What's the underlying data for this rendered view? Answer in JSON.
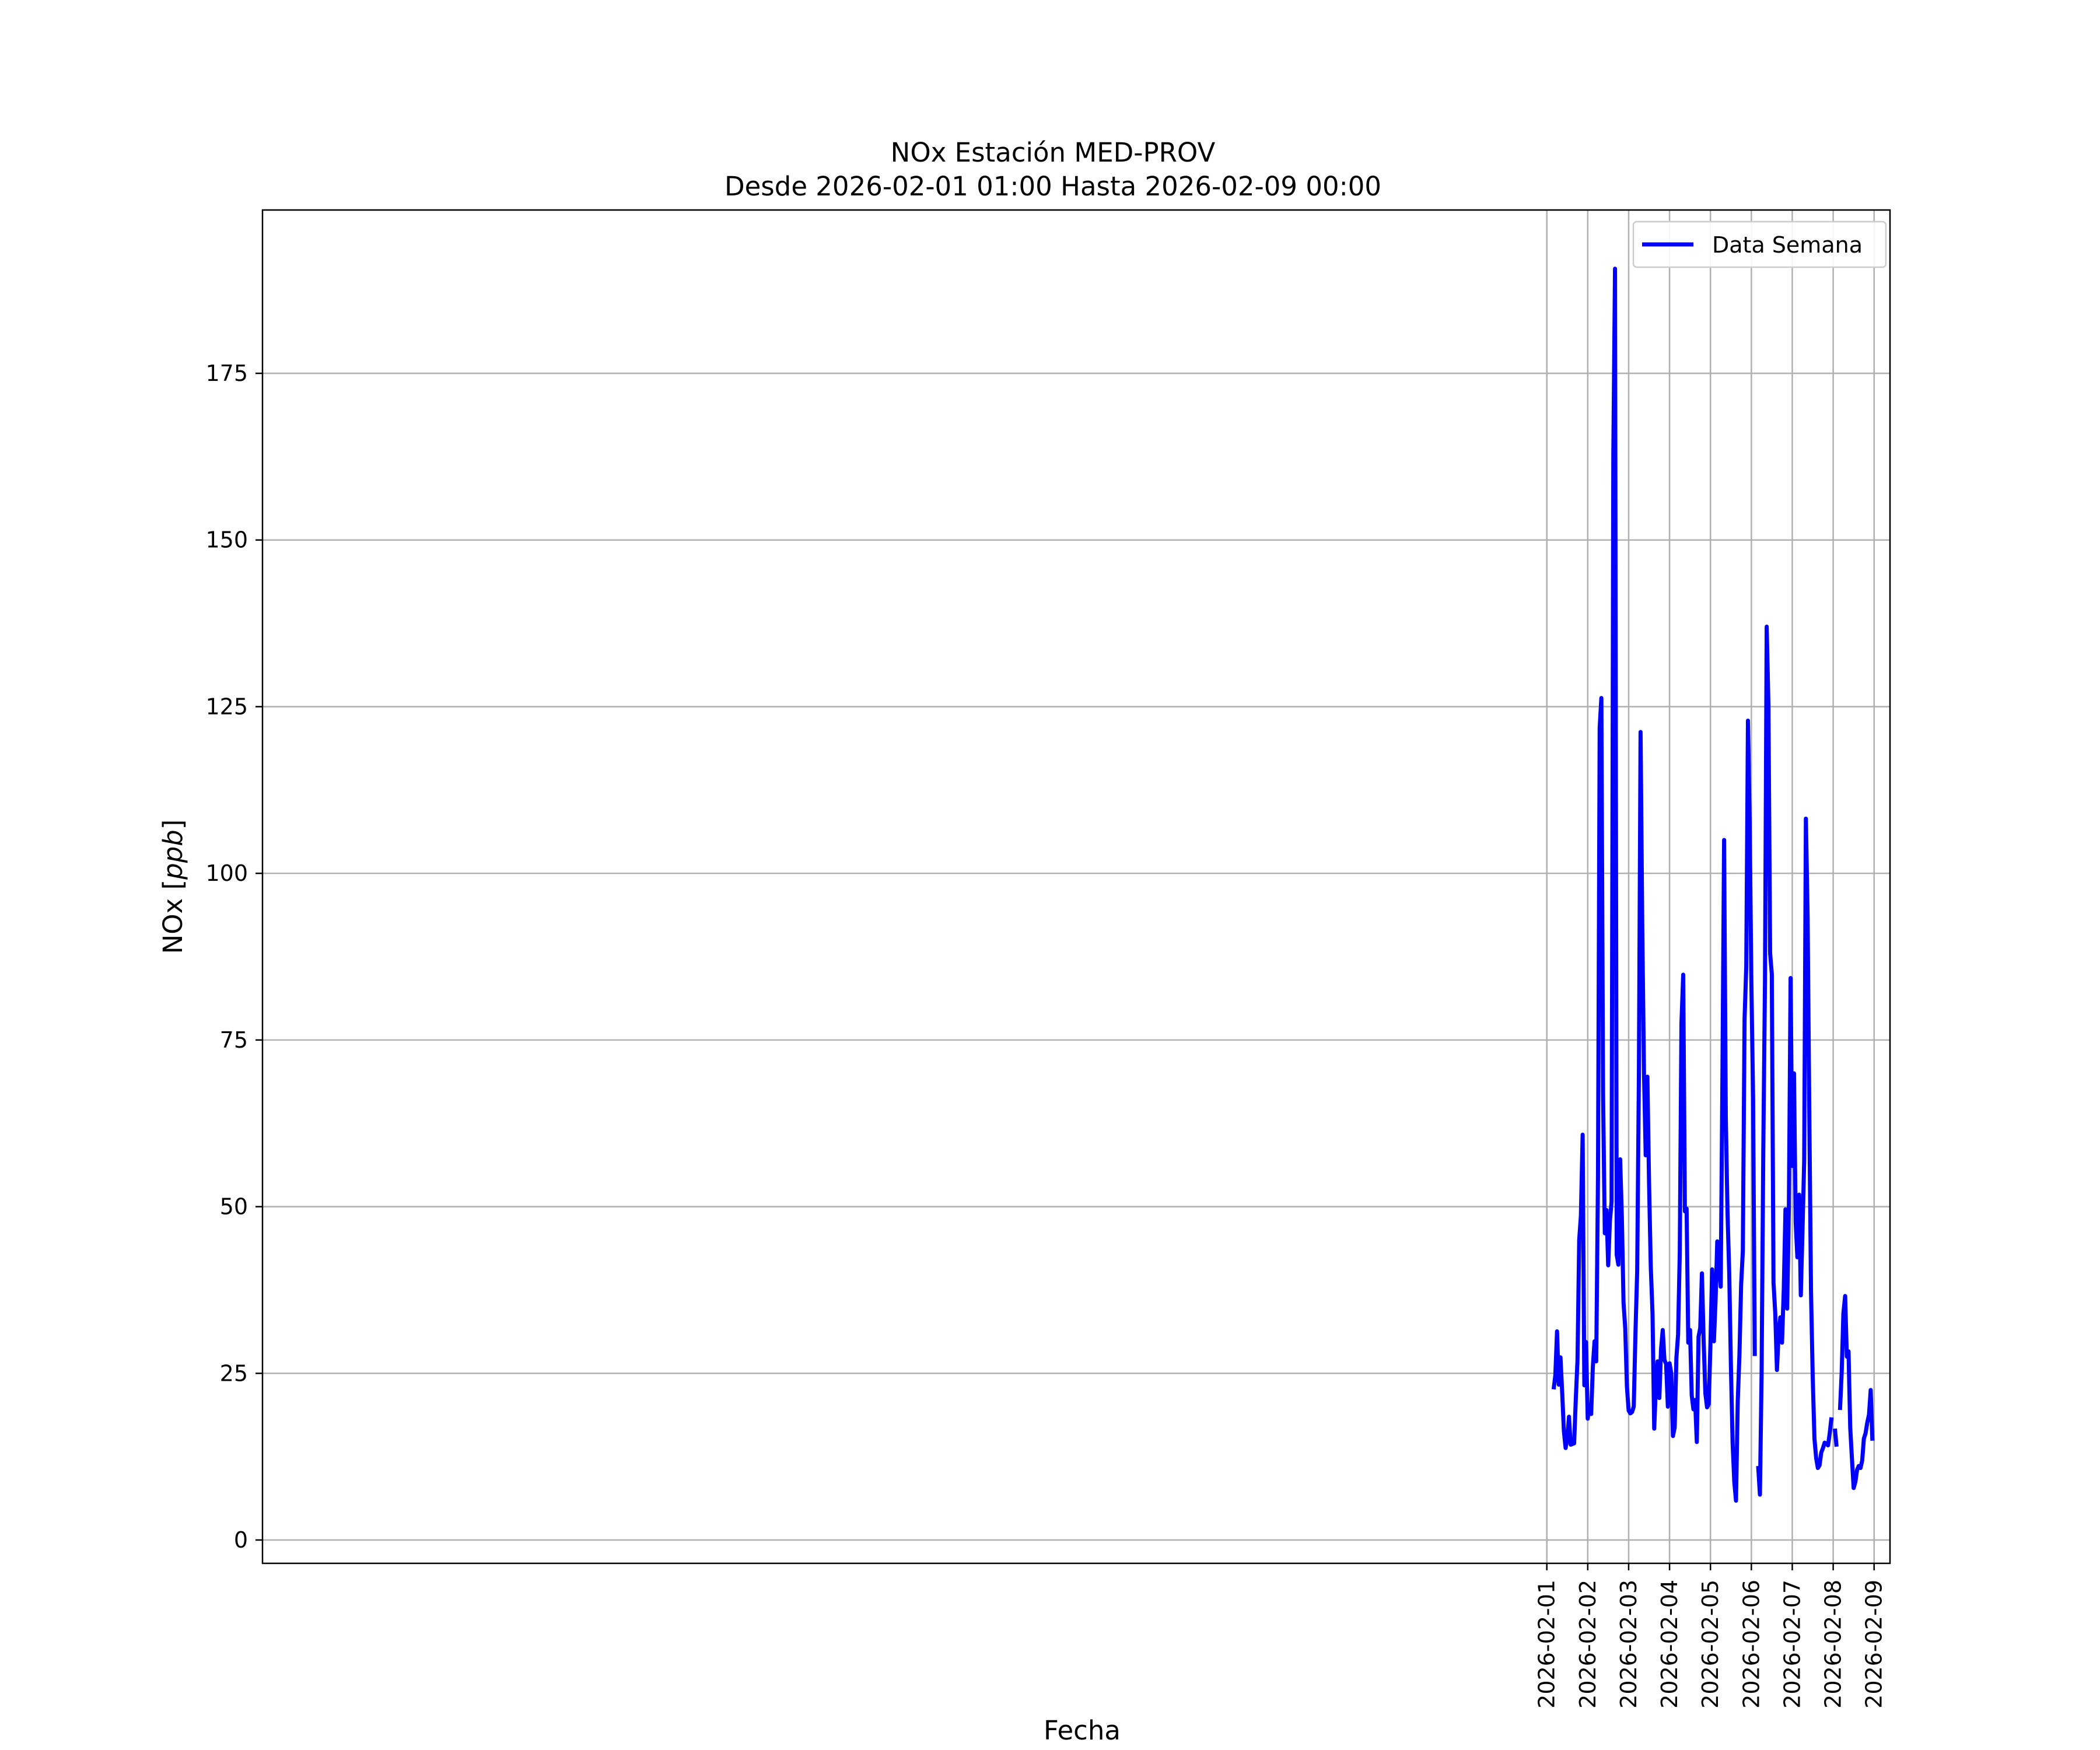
{
  "chart_data": {
    "type": "line",
    "title_line1": "NOx Estación MED-PROV",
    "title_line2": "Desde 2026-02-01 01:00 Hasta 2026-02-09 00:00",
    "xlabel": "Fecha",
    "ylabel_prefix": "NOx [",
    "ylabel_unit": "ppb",
    "ylabel_suffix": "]",
    "x_ticks": [
      "2026-02-01",
      "2026-02-02",
      "2026-02-03",
      "2026-02-04",
      "2026-02-05",
      "2026-02-06",
      "2026-02-07",
      "2026-02-08",
      "2026-02-09"
    ],
    "y_ticks": [
      0,
      25,
      50,
      75,
      100,
      125,
      150,
      175
    ],
    "xlim": [
      "2025-12-31 14:30",
      "2026-02-09 09:20"
    ],
    "ylim": [
      -3.5,
      199.5
    ],
    "grid": true,
    "legend_position": "top-right",
    "series": [
      {
        "name": "Data Semana",
        "color": "#0000ff",
        "start": "2026-02-01 04:00",
        "interval_hours": 1,
        "values": [
          22.6,
          24.7,
          31.3,
          23.3,
          27.4,
          22.2,
          16.4,
          13.8,
          15.2,
          18.5,
          14.3,
          14.4,
          14.5,
          21.2,
          27.0,
          45.0,
          48.6,
          60.8,
          23.2,
          29.7,
          18.2,
          20.2,
          18.9,
          26.0,
          29.8,
          26.8,
          54.4,
          121.8,
          126.3,
          67.1,
          46.0,
          49.5,
          41.2,
          47.8,
          50.7,
          162.8,
          190.7,
          42.8,
          41.3,
          57.1,
          48.5,
          35.6,
          31.8,
          23.0,
          19.4,
          19.0,
          19.2,
          20.0,
          31.2,
          40.3,
          69.4,
          121.2,
          92.0,
          70.0,
          57.7,
          69.5,
          53.3,
          41.0,
          34.0,
          16.7,
          23.2,
          26.8,
          21.3,
          28.6,
          31.5,
          27.0,
          26.4,
          20.0,
          26.5,
          25.0,
          15.6,
          16.9,
          27.3,
          30.8,
          43.0,
          77.5,
          84.8,
          49.3,
          49.7,
          29.6,
          31.5,
          21.7,
          19.6,
          21.0,
          14.7,
          30.5,
          31.8,
          40.0,
          30.0,
          22.0,
          19.9,
          20.4,
          29.4,
          40.6,
          29.8,
          36.0,
          44.8,
          41.5,
          38.0,
          69.2,
          105.0,
          63.5,
          49.3,
          40.0,
          26.0,
          14.5,
          8.7,
          5.9,
          20.8,
          27.8,
          38.3,
          43.3,
          78.2,
          86.0,
          122.9,
          108.0,
          84.0,
          66.3,
          27.6,
          null,
          11.1,
          6.8,
          25.0,
          58.7,
          84.0,
          137.0,
          125.2,
          88.0,
          84.9,
          38.6,
          34.0,
          25.5,
          31.0,
          33.4,
          29.6,
          37.6,
          49.6,
          34.7,
          49.6,
          84.3,
          56.1,
          70.0,
          47.7,
          42.4,
          51.8,
          36.7,
          46.5,
          56.9,
          108.2,
          93.3,
          63.6,
          37.3,
          24.5,
          15.2,
          12.3,
          10.8,
          11.2,
          13.1,
          13.8,
          14.6,
          14.4,
          14.2,
          16.1,
          18.4,
          null,
          16.7,
          14.0,
          null,
          19.5,
          25.2,
          34.0,
          36.6,
          27.5,
          28.3,
          16.9,
          12.3,
          7.8,
          8.7,
          10.5,
          11.1,
          10.8,
          11.9,
          15.2,
          16.0,
          17.6,
          18.8,
          22.5,
          14.9
        ]
      }
    ]
  }
}
